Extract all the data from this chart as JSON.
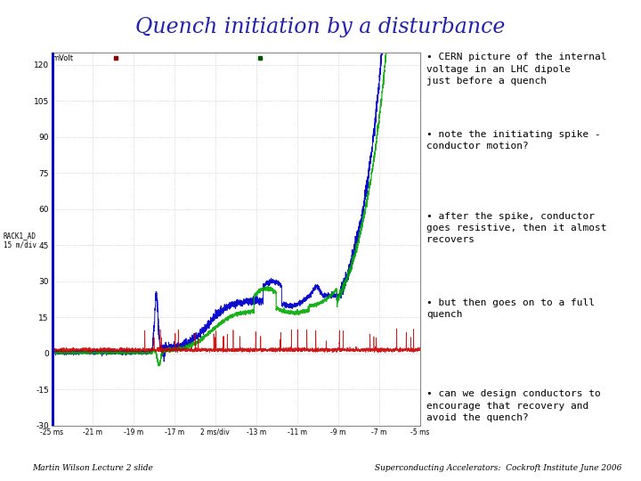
{
  "title": "Quench initiation by a disturbance",
  "title_fontsize": 17,
  "title_style": "italic",
  "title_color": "#2222AA",
  "bg_color": "#FFFFFF",
  "bullet_points": [
    "CERN picture of the internal\nvoltage in an LHC dipole\njust before a quench",
    "note the initiating spike -\nconductor motion?",
    "after the spike, conductor\ngoes resistive, then it almost\nrecovers",
    "but then goes on to a full\nquench",
    "can we design conductors to\nencourage that recovery and\navoid the quench?"
  ],
  "footer_left": "Martin Wilson Lecture 2 slide",
  "footer_right": "Superconducting Accelerators:  Cockroft Institute June 2006",
  "plot_bg": "#FFFFFF",
  "grid_color": "#BBBBBB",
  "yticks": [
    -30,
    -15,
    0,
    15,
    30,
    45,
    60,
    75,
    90,
    105,
    120
  ],
  "xtick_labels": [
    "-25 ms",
    "-21 m",
    "-19 m",
    "-17 m",
    "2 ms/div",
    "-13 m",
    "-11 m",
    "-9 m",
    "-7 m",
    "-5 ms"
  ],
  "ylabel": "mVolt",
  "left_label": "RACK1_AD\n15 m/div",
  "blue_color": "#0000CC",
  "green_color": "#00AA00",
  "red_color": "#CC0000",
  "bullet_fontsize": 8,
  "bullet_font": "monospace"
}
